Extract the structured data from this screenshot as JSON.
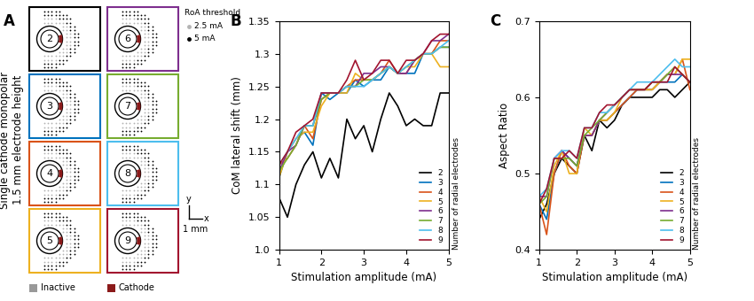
{
  "diagram": {
    "title": "A",
    "label": "Single cathode monopolar\n1.5 mm electrode height",
    "panels": [
      {
        "label": "2",
        "color": "#000000"
      },
      {
        "label": "3",
        "color": "#0072bd"
      },
      {
        "label": "4",
        "color": "#d95319"
      },
      {
        "label": "5",
        "color": "#edb120"
      },
      {
        "label": "6",
        "color": "#7e2f8e"
      },
      {
        "label": "7",
        "color": "#77ac30"
      },
      {
        "label": "8",
        "color": "#4dbeee"
      },
      {
        "label": "9",
        "color": "#a2142f"
      }
    ],
    "legend": {
      "title": "RoA threshold",
      "items": [
        {
          "label": "2.5 mA",
          "color": "#b3b3b3"
        },
        {
          "label": "5 mA",
          "color": "#000000"
        }
      ]
    },
    "scale_bar": {
      "y": "y",
      "x": "x",
      "label": "1 mm"
    },
    "key": [
      {
        "label": "Inactive",
        "color": "#999999"
      },
      {
        "label": "Cathode",
        "color": "#8b1a1a"
      }
    ]
  },
  "chart_data": [
    {
      "type": "line",
      "title": "B",
      "xlabel": "Stimulation amplitude (mA)",
      "ylabel": "CoM lateral shift (mm)",
      "legend_title": "Number of radial electrodes",
      "legend": "lower right",
      "grid": false,
      "line_style": "solid",
      "x": [
        1.0,
        1.2,
        1.4,
        1.6,
        1.8,
        2.0,
        2.2,
        2.4,
        2.6,
        2.8,
        3.0,
        3.2,
        3.4,
        3.6,
        3.8,
        4.0,
        4.2,
        4.4,
        4.6,
        4.8,
        5.0
      ],
      "xlim": [
        1,
        5
      ],
      "xticks": [
        1,
        2,
        3,
        4,
        5
      ],
      "ylim": [
        1.0,
        1.35
      ],
      "yticks": [
        {
          "value": 1.0,
          "label": "1.0"
        },
        1.05,
        1.1,
        1.15,
        1.2,
        1.25,
        1.3,
        1.35
      ],
      "series": [
        {
          "name": "2",
          "color": "#000000",
          "values": [
            1.08,
            1.05,
            1.1,
            1.13,
            1.15,
            1.11,
            1.14,
            1.11,
            1.2,
            1.17,
            1.19,
            1.15,
            1.2,
            1.24,
            1.22,
            1.19,
            1.2,
            1.19,
            1.19,
            1.24,
            1.24
          ]
        },
        {
          "name": "3",
          "color": "#0072bd",
          "values": [
            1.11,
            1.15,
            1.17,
            1.18,
            1.16,
            1.24,
            1.23,
            1.24,
            1.24,
            1.26,
            1.25,
            1.26,
            1.26,
            1.28,
            1.27,
            1.27,
            1.27,
            1.3,
            1.3,
            1.31,
            1.31
          ]
        },
        {
          "name": "4",
          "color": "#d95319",
          "values": [
            1.13,
            1.14,
            1.16,
            1.19,
            1.17,
            1.23,
            1.24,
            1.24,
            1.25,
            1.26,
            1.26,
            1.26,
            1.27,
            1.29,
            1.27,
            1.27,
            1.29,
            1.3,
            1.3,
            1.32,
            1.32
          ]
        },
        {
          "name": "5",
          "color": "#edb120",
          "values": [
            1.11,
            1.15,
            1.17,
            1.18,
            1.18,
            1.22,
            1.24,
            1.24,
            1.24,
            1.27,
            1.26,
            1.26,
            1.27,
            1.28,
            1.27,
            1.28,
            1.28,
            1.3,
            1.3,
            1.28,
            1.28
          ]
        },
        {
          "name": "6",
          "color": "#7e2f8e",
          "values": [
            1.12,
            1.15,
            1.16,
            1.19,
            1.19,
            1.24,
            1.24,
            1.24,
            1.25,
            1.25,
            1.27,
            1.27,
            1.28,
            1.28,
            1.27,
            1.27,
            1.29,
            1.3,
            1.32,
            1.32,
            1.33
          ]
        },
        {
          "name": "7",
          "color": "#77ac30",
          "values": [
            1.12,
            1.14,
            1.16,
            1.19,
            1.19,
            1.23,
            1.24,
            1.24,
            1.25,
            1.25,
            1.26,
            1.26,
            1.27,
            1.28,
            1.27,
            1.28,
            1.29,
            1.3,
            1.3,
            1.31,
            1.31
          ]
        },
        {
          "name": "8",
          "color": "#4dbeee",
          "values": [
            1.13,
            1.15,
            1.17,
            1.19,
            1.19,
            1.24,
            1.24,
            1.24,
            1.25,
            1.25,
            1.25,
            1.26,
            1.27,
            1.28,
            1.27,
            1.28,
            1.29,
            1.3,
            1.3,
            1.31,
            1.32
          ]
        },
        {
          "name": "9",
          "color": "#a2142f",
          "values": [
            1.13,
            1.15,
            1.18,
            1.19,
            1.2,
            1.24,
            1.24,
            1.24,
            1.26,
            1.29,
            1.26,
            1.27,
            1.29,
            1.29,
            1.27,
            1.29,
            1.29,
            1.3,
            1.32,
            1.33,
            1.33
          ]
        }
      ]
    },
    {
      "type": "line",
      "title": "C",
      "xlabel": "Stimulation amplitude (mA)",
      "ylabel": "Aspect Ratio",
      "legend_title": "Number of radial electrodes",
      "legend": "lower right",
      "grid": false,
      "line_style": "solid",
      "x": [
        1.0,
        1.2,
        1.4,
        1.6,
        1.8,
        2.0,
        2.2,
        2.4,
        2.6,
        2.8,
        3.0,
        3.2,
        3.4,
        3.6,
        3.8,
        4.0,
        4.2,
        4.4,
        4.6,
        4.8,
        5.0
      ],
      "xlim": [
        1,
        5
      ],
      "xticks": [
        1,
        2,
        3,
        4,
        5
      ],
      "ylim": [
        0.4,
        0.7
      ],
      "yticks": [
        0.4,
        0.5,
        0.6,
        0.7
      ],
      "series": [
        {
          "name": "2",
          "color": "#000000",
          "values": [
            0.44,
            0.46,
            0.5,
            0.52,
            0.51,
            0.5,
            0.55,
            0.53,
            0.57,
            0.56,
            0.57,
            0.59,
            0.6,
            0.6,
            0.6,
            0.6,
            0.61,
            0.61,
            0.6,
            0.61,
            0.62
          ]
        },
        {
          "name": "3",
          "color": "#0072bd",
          "values": [
            0.46,
            0.44,
            0.5,
            0.53,
            0.52,
            0.51,
            0.55,
            0.55,
            0.57,
            0.57,
            0.58,
            0.59,
            0.6,
            0.61,
            0.61,
            0.61,
            0.62,
            0.62,
            0.62,
            0.63,
            0.62
          ]
        },
        {
          "name": "4",
          "color": "#d95319",
          "values": [
            0.46,
            0.42,
            0.5,
            0.53,
            0.51,
            0.5,
            0.55,
            0.55,
            0.57,
            0.57,
            0.58,
            0.59,
            0.6,
            0.61,
            0.61,
            0.61,
            0.62,
            0.63,
            0.63,
            0.65,
            0.61
          ]
        },
        {
          "name": "5",
          "color": "#edb120",
          "values": [
            0.47,
            0.45,
            0.51,
            0.53,
            0.5,
            0.5,
            0.56,
            0.55,
            0.57,
            0.57,
            0.58,
            0.6,
            0.61,
            0.61,
            0.61,
            0.61,
            0.62,
            0.63,
            0.63,
            0.65,
            0.65
          ]
        },
        {
          "name": "6",
          "color": "#7e2f8e",
          "values": [
            0.47,
            0.47,
            0.52,
            0.53,
            0.52,
            0.51,
            0.55,
            0.55,
            0.57,
            0.58,
            0.59,
            0.6,
            0.61,
            0.61,
            0.61,
            0.62,
            0.62,
            0.63,
            0.63,
            0.63,
            0.62
          ]
        },
        {
          "name": "7",
          "color": "#77ac30",
          "values": [
            0.46,
            0.47,
            0.52,
            0.52,
            0.52,
            0.51,
            0.55,
            0.56,
            0.57,
            0.58,
            0.59,
            0.6,
            0.61,
            0.61,
            0.61,
            0.62,
            0.62,
            0.63,
            0.64,
            0.63,
            0.62
          ]
        },
        {
          "name": "8",
          "color": "#4dbeee",
          "values": [
            0.47,
            0.48,
            0.52,
            0.53,
            0.53,
            0.52,
            0.56,
            0.56,
            0.58,
            0.58,
            0.59,
            0.6,
            0.61,
            0.62,
            0.62,
            0.62,
            0.63,
            0.64,
            0.65,
            0.64,
            0.64
          ]
        },
        {
          "name": "9",
          "color": "#a2142f",
          "values": [
            0.46,
            0.48,
            0.52,
            0.52,
            0.53,
            0.52,
            0.56,
            0.56,
            0.58,
            0.59,
            0.59,
            0.6,
            0.61,
            0.61,
            0.61,
            0.62,
            0.62,
            0.62,
            0.64,
            0.63,
            0.62
          ]
        }
      ]
    }
  ]
}
